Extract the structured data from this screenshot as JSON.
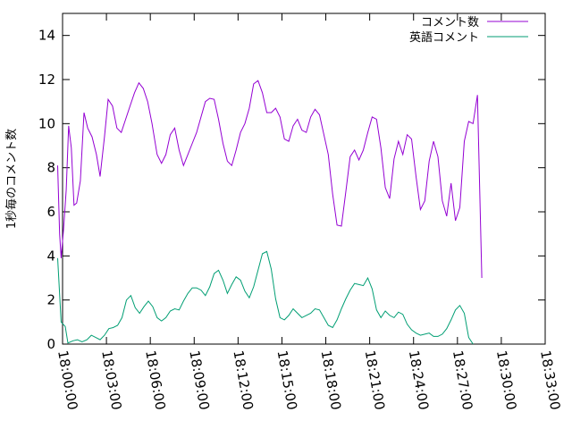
{
  "chart_data": {
    "type": "line",
    "ylabel": "1秒毎のコメント数",
    "xlabel": "",
    "title": "",
    "ylim": [
      0,
      15
    ],
    "xlim": [
      "18:00:00",
      "18:33:00"
    ],
    "y_ticks": [
      0,
      2,
      4,
      6,
      8,
      10,
      12,
      14
    ],
    "x_ticks": [
      "18:00:00",
      "18:03:00",
      "18:06:00",
      "18:09:00",
      "18:12:00",
      "18:15:00",
      "18:18:00",
      "18:21:00",
      "18:24:00",
      "18:27:00",
      "18:30:00",
      "18:33:00"
    ],
    "legend_position": "top-right",
    "grid": false,
    "series": [
      {
        "name": "コメント数",
        "color": "#9400d3",
        "points": [
          [
            "17:59:40",
            8.1
          ],
          [
            "17:59:48",
            5.0
          ],
          [
            "17:59:54",
            3.9
          ],
          [
            "18:00:04",
            5.2
          ],
          [
            "18:00:15",
            7.0
          ],
          [
            "18:00:25",
            9.9
          ],
          [
            "18:00:36",
            8.9
          ],
          [
            "18:00:47",
            6.3
          ],
          [
            "18:00:58",
            6.4
          ],
          [
            "18:01:13",
            7.4
          ],
          [
            "18:01:28",
            10.5
          ],
          [
            "18:01:43",
            9.8
          ],
          [
            "18:02:01",
            9.4
          ],
          [
            "18:02:19",
            8.6
          ],
          [
            "18:02:34",
            7.6
          ],
          [
            "18:02:52",
            9.4
          ],
          [
            "18:03:07",
            11.1
          ],
          [
            "18:03:25",
            10.8
          ],
          [
            "18:03:43",
            9.8
          ],
          [
            "18:04:01",
            9.6
          ],
          [
            "18:04:19",
            10.2
          ],
          [
            "18:04:37",
            10.8
          ],
          [
            "18:04:55",
            11.4
          ],
          [
            "18:05:13",
            11.85
          ],
          [
            "18:05:31",
            11.6
          ],
          [
            "18:05:49",
            11.0
          ],
          [
            "18:06:07",
            10.0
          ],
          [
            "18:06:28",
            8.6
          ],
          [
            "18:06:46",
            8.2
          ],
          [
            "18:07:04",
            8.6
          ],
          [
            "18:07:22",
            9.5
          ],
          [
            "18:07:40",
            9.8
          ],
          [
            "18:07:58",
            8.8
          ],
          [
            "18:08:16",
            8.1
          ],
          [
            "18:08:34",
            8.6
          ],
          [
            "18:08:52",
            9.1
          ],
          [
            "18:09:10",
            9.6
          ],
          [
            "18:09:28",
            10.3
          ],
          [
            "18:09:46",
            11.0
          ],
          [
            "18:10:04",
            11.15
          ],
          [
            "18:10:22",
            11.1
          ],
          [
            "18:10:40",
            10.2
          ],
          [
            "18:10:58",
            9.1
          ],
          [
            "18:11:16",
            8.3
          ],
          [
            "18:11:34",
            8.1
          ],
          [
            "18:11:52",
            8.8
          ],
          [
            "18:12:10",
            9.6
          ],
          [
            "18:12:28",
            10.0
          ],
          [
            "18:12:46",
            10.7
          ],
          [
            "18:13:04",
            11.8
          ],
          [
            "18:13:22",
            11.95
          ],
          [
            "18:13:40",
            11.4
          ],
          [
            "18:13:58",
            10.5
          ],
          [
            "18:14:16",
            10.5
          ],
          [
            "18:14:34",
            10.7
          ],
          [
            "18:14:52",
            10.3
          ],
          [
            "18:15:10",
            9.3
          ],
          [
            "18:15:28",
            9.2
          ],
          [
            "18:15:46",
            9.9
          ],
          [
            "18:16:04",
            10.2
          ],
          [
            "18:16:22",
            9.7
          ],
          [
            "18:16:40",
            9.6
          ],
          [
            "18:16:58",
            10.3
          ],
          [
            "18:17:16",
            10.65
          ],
          [
            "18:17:34",
            10.4
          ],
          [
            "18:17:52",
            9.5
          ],
          [
            "18:18:10",
            8.6
          ],
          [
            "18:18:28",
            6.8
          ],
          [
            "18:18:46",
            5.4
          ],
          [
            "18:19:04",
            5.35
          ],
          [
            "18:19:22",
            6.9
          ],
          [
            "18:19:40",
            8.5
          ],
          [
            "18:19:58",
            8.8
          ],
          [
            "18:20:16",
            8.35
          ],
          [
            "18:20:34",
            8.8
          ],
          [
            "18:20:52",
            9.6
          ],
          [
            "18:21:10",
            10.3
          ],
          [
            "18:21:28",
            10.2
          ],
          [
            "18:21:46",
            8.9
          ],
          [
            "18:22:04",
            7.1
          ],
          [
            "18:22:22",
            6.6
          ],
          [
            "18:22:40",
            8.4
          ],
          [
            "18:22:58",
            9.2
          ],
          [
            "18:23:16",
            8.6
          ],
          [
            "18:23:34",
            9.5
          ],
          [
            "18:23:52",
            9.3
          ],
          [
            "18:24:10",
            7.6
          ],
          [
            "18:24:28",
            6.1
          ],
          [
            "18:24:46",
            6.5
          ],
          [
            "18:25:04",
            8.3
          ],
          [
            "18:25:22",
            9.2
          ],
          [
            "18:25:40",
            8.5
          ],
          [
            "18:25:58",
            6.5
          ],
          [
            "18:26:16",
            5.8
          ],
          [
            "18:26:34",
            7.3
          ],
          [
            "18:26:52",
            5.6
          ],
          [
            "18:27:10",
            6.2
          ],
          [
            "18:27:28",
            9.2
          ],
          [
            "18:27:46",
            10.1
          ],
          [
            "18:28:04",
            10.0
          ],
          [
            "18:28:22",
            11.3
          ],
          [
            "18:28:40",
            3.0
          ]
        ]
      },
      {
        "name": "英語コメント",
        "color": "#009e73",
        "points": [
          [
            "17:59:40",
            3.9
          ],
          [
            "17:59:54",
            1.0
          ],
          [
            "18:00:11",
            0.8
          ],
          [
            "18:00:22",
            0.05
          ],
          [
            "18:00:43",
            0.15
          ],
          [
            "18:01:01",
            0.2
          ],
          [
            "18:01:20",
            0.1
          ],
          [
            "18:01:40",
            0.2
          ],
          [
            "18:01:58",
            0.4
          ],
          [
            "18:02:16",
            0.3
          ],
          [
            "18:02:34",
            0.2
          ],
          [
            "18:02:52",
            0.4
          ],
          [
            "18:03:10",
            0.7
          ],
          [
            "18:03:28",
            0.75
          ],
          [
            "18:03:46",
            0.85
          ],
          [
            "18:04:04",
            1.2
          ],
          [
            "18:04:22",
            2.0
          ],
          [
            "18:04:40",
            2.2
          ],
          [
            "18:04:58",
            1.65
          ],
          [
            "18:05:16",
            1.4
          ],
          [
            "18:05:34",
            1.7
          ],
          [
            "18:05:52",
            1.95
          ],
          [
            "18:06:10",
            1.7
          ],
          [
            "18:06:28",
            1.2
          ],
          [
            "18:06:46",
            1.05
          ],
          [
            "18:07:04",
            1.2
          ],
          [
            "18:07:22",
            1.5
          ],
          [
            "18:07:40",
            1.6
          ],
          [
            "18:07:58",
            1.55
          ],
          [
            "18:08:16",
            1.95
          ],
          [
            "18:08:34",
            2.3
          ],
          [
            "18:08:52",
            2.55
          ],
          [
            "18:09:10",
            2.55
          ],
          [
            "18:09:28",
            2.45
          ],
          [
            "18:09:46",
            2.2
          ],
          [
            "18:10:04",
            2.6
          ],
          [
            "18:10:22",
            3.2
          ],
          [
            "18:10:40",
            3.35
          ],
          [
            "18:10:58",
            2.9
          ],
          [
            "18:11:16",
            2.3
          ],
          [
            "18:11:34",
            2.7
          ],
          [
            "18:11:52",
            3.05
          ],
          [
            "18:12:10",
            2.9
          ],
          [
            "18:12:28",
            2.4
          ],
          [
            "18:12:46",
            2.1
          ],
          [
            "18:13:04",
            2.6
          ],
          [
            "18:13:22",
            3.35
          ],
          [
            "18:13:40",
            4.1
          ],
          [
            "18:13:58",
            4.2
          ],
          [
            "18:14:16",
            3.4
          ],
          [
            "18:14:34",
            2.05
          ],
          [
            "18:14:52",
            1.2
          ],
          [
            "18:15:10",
            1.1
          ],
          [
            "18:15:28",
            1.3
          ],
          [
            "18:15:46",
            1.6
          ],
          [
            "18:16:04",
            1.4
          ],
          [
            "18:16:22",
            1.2
          ],
          [
            "18:16:40",
            1.3
          ],
          [
            "18:16:58",
            1.4
          ],
          [
            "18:17:16",
            1.6
          ],
          [
            "18:17:34",
            1.55
          ],
          [
            "18:17:52",
            1.2
          ],
          [
            "18:18:10",
            0.85
          ],
          [
            "18:18:28",
            0.75
          ],
          [
            "18:18:46",
            1.1
          ],
          [
            "18:19:04",
            1.6
          ],
          [
            "18:19:22",
            2.05
          ],
          [
            "18:19:40",
            2.45
          ],
          [
            "18:19:58",
            2.75
          ],
          [
            "18:20:16",
            2.7
          ],
          [
            "18:20:34",
            2.65
          ],
          [
            "18:20:52",
            3.0
          ],
          [
            "18:21:10",
            2.5
          ],
          [
            "18:21:28",
            1.55
          ],
          [
            "18:21:46",
            1.2
          ],
          [
            "18:22:04",
            1.5
          ],
          [
            "18:22:22",
            1.3
          ],
          [
            "18:22:40",
            1.2
          ],
          [
            "18:22:58",
            1.45
          ],
          [
            "18:23:16",
            1.35
          ],
          [
            "18:23:34",
            0.9
          ],
          [
            "18:23:52",
            0.65
          ],
          [
            "18:24:10",
            0.5
          ],
          [
            "18:24:28",
            0.4
          ],
          [
            "18:24:46",
            0.45
          ],
          [
            "18:25:04",
            0.5
          ],
          [
            "18:25:22",
            0.35
          ],
          [
            "18:25:40",
            0.35
          ],
          [
            "18:25:58",
            0.45
          ],
          [
            "18:26:16",
            0.7
          ],
          [
            "18:26:34",
            1.1
          ],
          [
            "18:26:52",
            1.55
          ],
          [
            "18:27:10",
            1.75
          ],
          [
            "18:27:28",
            1.4
          ],
          [
            "18:27:46",
            0.3
          ],
          [
            "18:28:04",
            0.0
          ]
        ]
      }
    ]
  }
}
